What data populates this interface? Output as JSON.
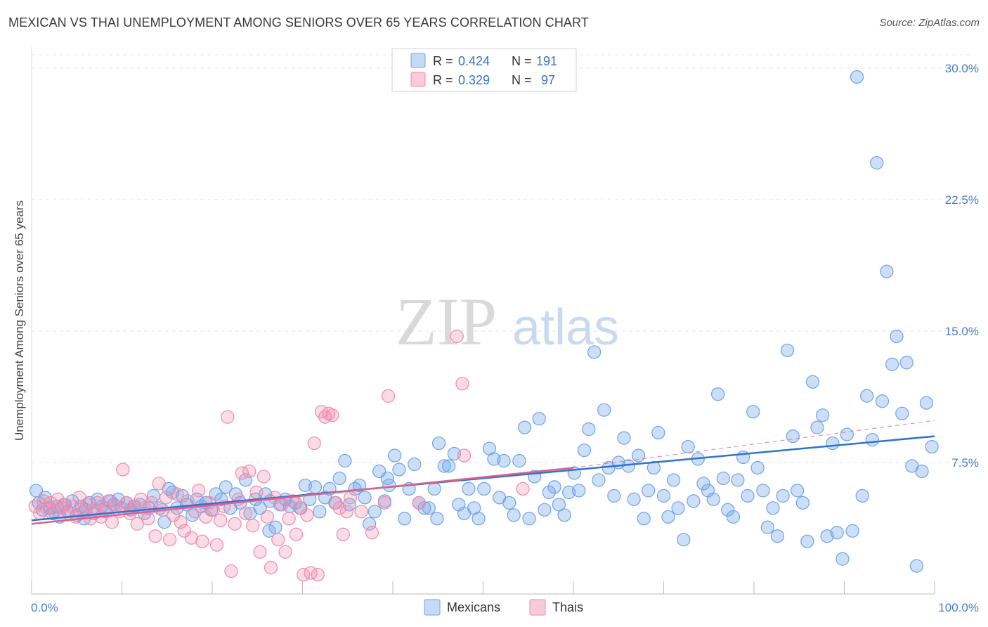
{
  "title": "MEXICAN VS THAI UNEMPLOYMENT AMONG SENIORS OVER 65 YEARS CORRELATION CHART",
  "source": "Source: ZipAtlas.com",
  "watermark": {
    "zip": "ZIP",
    "atlas": "atlas"
  },
  "legend_top": [
    {
      "r_label": "R =",
      "r_value": "0.424",
      "n_label": "N =",
      "n_value": "191",
      "color": "#6ea3e8"
    },
    {
      "r_label": "R =",
      "r_value": "0.329",
      "n_label": "N =",
      "n_value": "97",
      "color": "#f08aab"
    }
  ],
  "legend_bottom": [
    {
      "name": "Mexicans",
      "color": "#6ea3e8"
    },
    {
      "name": "Thais",
      "color": "#f08aab"
    }
  ],
  "chart_data": {
    "type": "scatter",
    "title": "MEXICAN VS THAI UNEMPLOYMENT AMONG SENIORS OVER 65 YEARS CORRELATION CHART",
    "xlabel": "",
    "ylabel": "Unemployment Among Seniors over 65 years",
    "xlim": [
      0,
      100
    ],
    "ylim": [
      0,
      31
    ],
    "x_tick_labels": [
      "0.0%",
      "100.0%"
    ],
    "y_ticks": [
      7.5,
      15.0,
      22.5,
      30.0
    ],
    "y_tick_labels": [
      "7.5%",
      "15.0%",
      "22.5%",
      "30.0%"
    ],
    "grid": true,
    "legend_position": "top-center",
    "series": [
      {
        "name": "Mexicans",
        "color": "#6ea3e8",
        "line_color": "#2f72d0",
        "trend": {
          "x": [
            0,
            100
          ],
          "y": [
            4.2,
            9.0
          ]
        },
        "points": [
          [
            0.5,
            5.9
          ],
          [
            0.8,
            5.2
          ],
          [
            1.2,
            4.8
          ],
          [
            1.5,
            5.5
          ],
          [
            2.0,
            4.9
          ],
          [
            2.3,
            4.6
          ],
          [
            2.8,
            5.0
          ],
          [
            3.1,
            4.4
          ],
          [
            3.6,
            5.1
          ],
          [
            4.0,
            4.7
          ],
          [
            4.5,
            5.3
          ],
          [
            5.0,
            4.5
          ],
          [
            5.5,
            5.0
          ],
          [
            6.0,
            4.8
          ],
          [
            6.4,
            5.2
          ],
          [
            6.9,
            4.6
          ],
          [
            7.3,
            5.4
          ],
          [
            7.8,
            5.0
          ],
          [
            8.2,
            4.7
          ],
          [
            8.7,
            5.3
          ],
          [
            9.1,
            5.1
          ],
          [
            9.6,
            5.4
          ],
          [
            10.0,
            4.9
          ],
          [
            10.5,
            5.2
          ],
          [
            11.0,
            4.8
          ],
          [
            11.4,
            5.0
          ],
          [
            12.0,
            5.1
          ],
          [
            12.5,
            4.6
          ],
          [
            13.0,
            4.9
          ],
          [
            13.5,
            5.6
          ],
          [
            14.2,
            4.9
          ],
          [
            14.7,
            4.1
          ],
          [
            15.2,
            6.0
          ],
          [
            15.6,
            5.8
          ],
          [
            16.1,
            4.9
          ],
          [
            16.7,
            5.6
          ],
          [
            17.2,
            5.1
          ],
          [
            17.8,
            4.5
          ],
          [
            18.3,
            5.4
          ],
          [
            18.8,
            5.0
          ],
          [
            19.3,
            5.2
          ],
          [
            19.9,
            4.8
          ],
          [
            20.4,
            5.7
          ],
          [
            21.0,
            5.4
          ],
          [
            21.5,
            6.1
          ],
          [
            22.0,
            4.9
          ],
          [
            22.6,
            5.7
          ],
          [
            23.1,
            5.2
          ],
          [
            23.7,
            6.5
          ],
          [
            24.2,
            4.6
          ],
          [
            24.8,
            5.4
          ],
          [
            25.3,
            4.9
          ],
          [
            25.9,
            5.7
          ],
          [
            26.4,
            5.3
          ],
          [
            27.0,
            3.8
          ],
          [
            27.5,
            5.1
          ],
          [
            28.1,
            5.4
          ],
          [
            28.6,
            5.0
          ],
          [
            29.2,
            5.2
          ],
          [
            29.8,
            4.9
          ],
          [
            30.3,
            6.2
          ],
          [
            30.8,
            5.4
          ],
          [
            31.4,
            6.1
          ],
          [
            31.9,
            4.7
          ],
          [
            32.5,
            5.5
          ],
          [
            33.0,
            6.0
          ],
          [
            33.6,
            5.2
          ],
          [
            34.1,
            6.6
          ],
          [
            34.7,
            7.6
          ],
          [
            35.2,
            5.1
          ],
          [
            35.8,
            6.0
          ],
          [
            36.3,
            6.2
          ],
          [
            36.9,
            5.5
          ],
          [
            37.4,
            4.0
          ],
          [
            38.0,
            4.7
          ],
          [
            38.5,
            7.0
          ],
          [
            39.1,
            5.3
          ],
          [
            39.6,
            6.2
          ],
          [
            40.2,
            7.9
          ],
          [
            40.7,
            7.1
          ],
          [
            41.3,
            4.3
          ],
          [
            41.8,
            6.0
          ],
          [
            42.4,
            7.4
          ],
          [
            42.9,
            5.2
          ],
          [
            43.5,
            4.9
          ],
          [
            44.0,
            4.9
          ],
          [
            44.6,
            6.0
          ],
          [
            45.1,
            8.6
          ],
          [
            45.7,
            7.3
          ],
          [
            46.2,
            7.3
          ],
          [
            46.8,
            8.0
          ],
          [
            47.3,
            5.1
          ],
          [
            47.9,
            4.6
          ],
          [
            48.4,
            6.0
          ],
          [
            49.0,
            4.9
          ],
          [
            49.5,
            4.3
          ],
          [
            50.1,
            6.0
          ],
          [
            50.7,
            8.3
          ],
          [
            51.2,
            7.7
          ],
          [
            51.8,
            5.5
          ],
          [
            52.3,
            7.6
          ],
          [
            52.9,
            5.2
          ],
          [
            53.4,
            4.5
          ],
          [
            54.0,
            7.6
          ],
          [
            54.6,
            9.5
          ],
          [
            55.1,
            4.3
          ],
          [
            55.7,
            6.7
          ],
          [
            56.2,
            10.0
          ],
          [
            56.8,
            4.8
          ],
          [
            57.3,
            5.8
          ],
          [
            57.9,
            6.1
          ],
          [
            58.4,
            5.1
          ],
          [
            59.0,
            4.5
          ],
          [
            59.5,
            5.8
          ],
          [
            60.1,
            6.9
          ],
          [
            60.6,
            5.9
          ],
          [
            61.2,
            8.2
          ],
          [
            61.7,
            9.4
          ],
          [
            62.3,
            13.8
          ],
          [
            62.8,
            6.5
          ],
          [
            63.4,
            10.5
          ],
          [
            63.9,
            7.2
          ],
          [
            64.5,
            5.6
          ],
          [
            65.0,
            7.5
          ],
          [
            65.6,
            8.9
          ],
          [
            66.1,
            7.3
          ],
          [
            66.7,
            5.4
          ],
          [
            67.2,
            7.9
          ],
          [
            67.8,
            4.3
          ],
          [
            68.3,
            5.9
          ],
          [
            68.9,
            7.2
          ],
          [
            69.4,
            9.2
          ],
          [
            70.0,
            5.6
          ],
          [
            70.5,
            4.4
          ],
          [
            71.1,
            6.5
          ],
          [
            71.6,
            4.9
          ],
          [
            72.2,
            3.1
          ],
          [
            72.7,
            8.4
          ],
          [
            73.3,
            5.3
          ],
          [
            73.8,
            7.7
          ],
          [
            74.4,
            6.3
          ],
          [
            74.9,
            5.9
          ],
          [
            75.5,
            5.4
          ],
          [
            76.0,
            11.4
          ],
          [
            76.6,
            6.6
          ],
          [
            77.1,
            4.8
          ],
          [
            77.7,
            4.4
          ],
          [
            78.2,
            6.5
          ],
          [
            78.8,
            7.8
          ],
          [
            79.3,
            5.6
          ],
          [
            79.9,
            10.4
          ],
          [
            80.4,
            7.2
          ],
          [
            81.0,
            5.9
          ],
          [
            81.5,
            3.8
          ],
          [
            82.1,
            4.9
          ],
          [
            82.6,
            3.3
          ],
          [
            83.2,
            5.6
          ],
          [
            83.7,
            13.9
          ],
          [
            84.3,
            9.0
          ],
          [
            84.8,
            5.9
          ],
          [
            85.4,
            5.2
          ],
          [
            85.9,
            3.0
          ],
          [
            86.5,
            12.1
          ],
          [
            87.0,
            9.5
          ],
          [
            87.6,
            10.2
          ],
          [
            88.1,
            3.3
          ],
          [
            88.7,
            8.6
          ],
          [
            89.2,
            3.5
          ],
          [
            89.8,
            2.0
          ],
          [
            90.3,
            9.1
          ],
          [
            90.9,
            3.6
          ],
          [
            91.4,
            29.5
          ],
          [
            92.0,
            5.6
          ],
          [
            92.5,
            11.3
          ],
          [
            93.1,
            8.8
          ],
          [
            93.6,
            24.6
          ],
          [
            94.2,
            11.0
          ],
          [
            94.7,
            18.4
          ],
          [
            95.3,
            13.1
          ],
          [
            95.8,
            14.7
          ],
          [
            96.4,
            10.3
          ],
          [
            96.9,
            13.2
          ],
          [
            97.5,
            7.3
          ],
          [
            98.0,
            1.6
          ],
          [
            98.6,
            7.0
          ],
          [
            99.1,
            10.9
          ],
          [
            99.7,
            8.4
          ],
          [
            5.8,
            4.3
          ],
          [
            26.3,
            3.6
          ],
          [
            39.4,
            6.6
          ],
          [
            44.9,
            4.3
          ]
        ]
      },
      {
        "name": "Thais",
        "color": "#f08aab",
        "line_color": "#e0608a",
        "trend": {
          "x": [
            0,
            60
          ],
          "y": [
            4.0,
            7.2
          ]
        },
        "trend_dashed": {
          "x": [
            60,
            100
          ],
          "y": [
            7.2,
            9.9
          ]
        },
        "points": [
          [
            0.4,
            5.0
          ],
          [
            0.9,
            4.6
          ],
          [
            1.3,
            5.3
          ],
          [
            1.7,
            4.9
          ],
          [
            2.1,
            5.2
          ],
          [
            2.5,
            4.7
          ],
          [
            2.9,
            5.4
          ],
          [
            3.3,
            4.9
          ],
          [
            3.7,
            5.1
          ],
          [
            4.1,
            4.6
          ],
          [
            4.5,
            5.0
          ],
          [
            4.9,
            4.4
          ],
          [
            5.3,
            5.5
          ],
          [
            5.7,
            4.7
          ],
          [
            6.1,
            5.1
          ],
          [
            6.5,
            4.3
          ],
          [
            6.9,
            4.8
          ],
          [
            7.3,
            5.2
          ],
          [
            7.7,
            4.4
          ],
          [
            8.1,
            4.9
          ],
          [
            8.5,
            5.3
          ],
          [
            8.9,
            4.1
          ],
          [
            9.3,
            5.0
          ],
          [
            9.7,
            4.7
          ],
          [
            10.1,
            7.1
          ],
          [
            10.5,
            5.2
          ],
          [
            10.9,
            4.6
          ],
          [
            11.3,
            5.0
          ],
          [
            11.7,
            4.0
          ],
          [
            12.1,
            5.4
          ],
          [
            12.5,
            4.9
          ],
          [
            12.9,
            4.3
          ],
          [
            13.3,
            5.2
          ],
          [
            13.7,
            3.3
          ],
          [
            14.1,
            6.3
          ],
          [
            14.5,
            4.8
          ],
          [
            14.9,
            5.5
          ],
          [
            15.3,
            3.1
          ],
          [
            15.7,
            4.5
          ],
          [
            16.1,
            5.7
          ],
          [
            16.5,
            4.1
          ],
          [
            16.9,
            3.6
          ],
          [
            17.3,
            5.3
          ],
          [
            17.7,
            3.2
          ],
          [
            18.1,
            4.7
          ],
          [
            18.5,
            5.9
          ],
          [
            18.9,
            3.0
          ],
          [
            19.3,
            4.4
          ],
          [
            19.7,
            5.2
          ],
          [
            20.1,
            4.8
          ],
          [
            20.5,
            2.8
          ],
          [
            20.9,
            4.2
          ],
          [
            21.3,
            5.0
          ],
          [
            21.7,
            10.1
          ],
          [
            22.1,
            1.3
          ],
          [
            22.5,
            4.0
          ],
          [
            22.9,
            5.4
          ],
          [
            23.3,
            6.9
          ],
          [
            23.7,
            4.6
          ],
          [
            24.1,
            7.0
          ],
          [
            24.5,
            3.9
          ],
          [
            24.9,
            5.8
          ],
          [
            25.3,
            2.4
          ],
          [
            25.7,
            6.7
          ],
          [
            26.1,
            4.4
          ],
          [
            26.5,
            1.5
          ],
          [
            26.9,
            5.5
          ],
          [
            27.3,
            3.1
          ],
          [
            27.7,
            5.1
          ],
          [
            28.1,
            2.4
          ],
          [
            28.5,
            4.3
          ],
          [
            28.9,
            5.3
          ],
          [
            29.3,
            3.4
          ],
          [
            29.7,
            4.9
          ],
          [
            30.1,
            1.1
          ],
          [
            30.5,
            4.5
          ],
          [
            30.9,
            1.2
          ],
          [
            31.3,
            8.6
          ],
          [
            31.7,
            1.1
          ],
          [
            32.1,
            10.4
          ],
          [
            32.5,
            10.1
          ],
          [
            32.9,
            10.3
          ],
          [
            33.3,
            10.2
          ],
          [
            33.7,
            5.2
          ],
          [
            34.1,
            4.9
          ],
          [
            34.5,
            3.4
          ],
          [
            34.9,
            4.7
          ],
          [
            35.3,
            5.5
          ],
          [
            36.5,
            4.7
          ],
          [
            37.7,
            3.5
          ],
          [
            39.1,
            5.2
          ],
          [
            39.5,
            11.3
          ],
          [
            42.9,
            5.2
          ],
          [
            47.1,
            14.7
          ],
          [
            47.7,
            12.0
          ],
          [
            47.9,
            7.9
          ],
          [
            54.4,
            6.0
          ]
        ]
      }
    ]
  }
}
